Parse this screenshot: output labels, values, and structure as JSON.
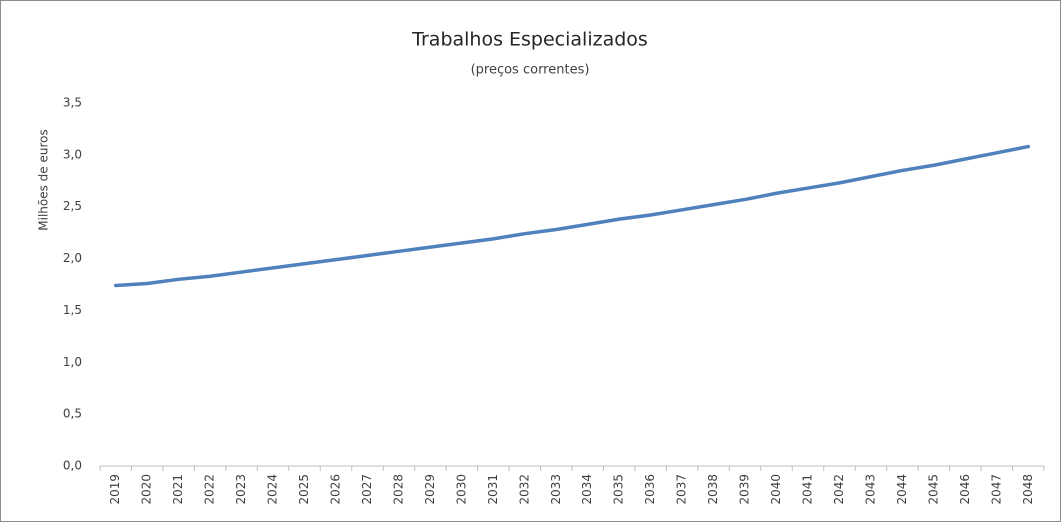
{
  "chart_data": {
    "type": "line",
    "title": "Trabalhos Especializados",
    "subtitle": "(preços correntes)",
    "y_label": "Milhões de euros",
    "categories": [
      "2019",
      "2020",
      "2021",
      "2022",
      "2023",
      "2024",
      "2025",
      "2026",
      "2027",
      "2028",
      "2029",
      "2030",
      "2031",
      "2032",
      "2033",
      "2034",
      "2035",
      "2036",
      "2037",
      "2038",
      "2039",
      "2040",
      "2041",
      "2042",
      "2043",
      "2044",
      "2045",
      "2046",
      "2047",
      "2048"
    ],
    "series": [
      {
        "color": "#4f81bd",
        "values": [
          1.74,
          1.76,
          1.8,
          1.83,
          1.87,
          1.91,
          1.95,
          1.99,
          2.03,
          2.07,
          2.11,
          2.15,
          2.19,
          2.24,
          2.28,
          2.33,
          2.38,
          2.42,
          2.47,
          2.52,
          2.57,
          2.63,
          2.68,
          2.73,
          2.79,
          2.85,
          2.9,
          2.96,
          3.02,
          3.08
        ]
      }
    ],
    "ylim": [
      0,
      3.5
    ],
    "yticks": [
      {
        "value": 0,
        "label": "0,0"
      },
      {
        "value": 0.5,
        "label": "0,5"
      },
      {
        "value": 1,
        "label": "1,0"
      },
      {
        "value": 1.5,
        "label": "1,5"
      },
      {
        "value": 2,
        "label": "2,0"
      },
      {
        "value": 2.5,
        "label": "2,5"
      },
      {
        "value": 3,
        "label": "3,0"
      },
      {
        "value": 3.5,
        "label": "3,5"
      }
    ],
    "grid": false
  }
}
